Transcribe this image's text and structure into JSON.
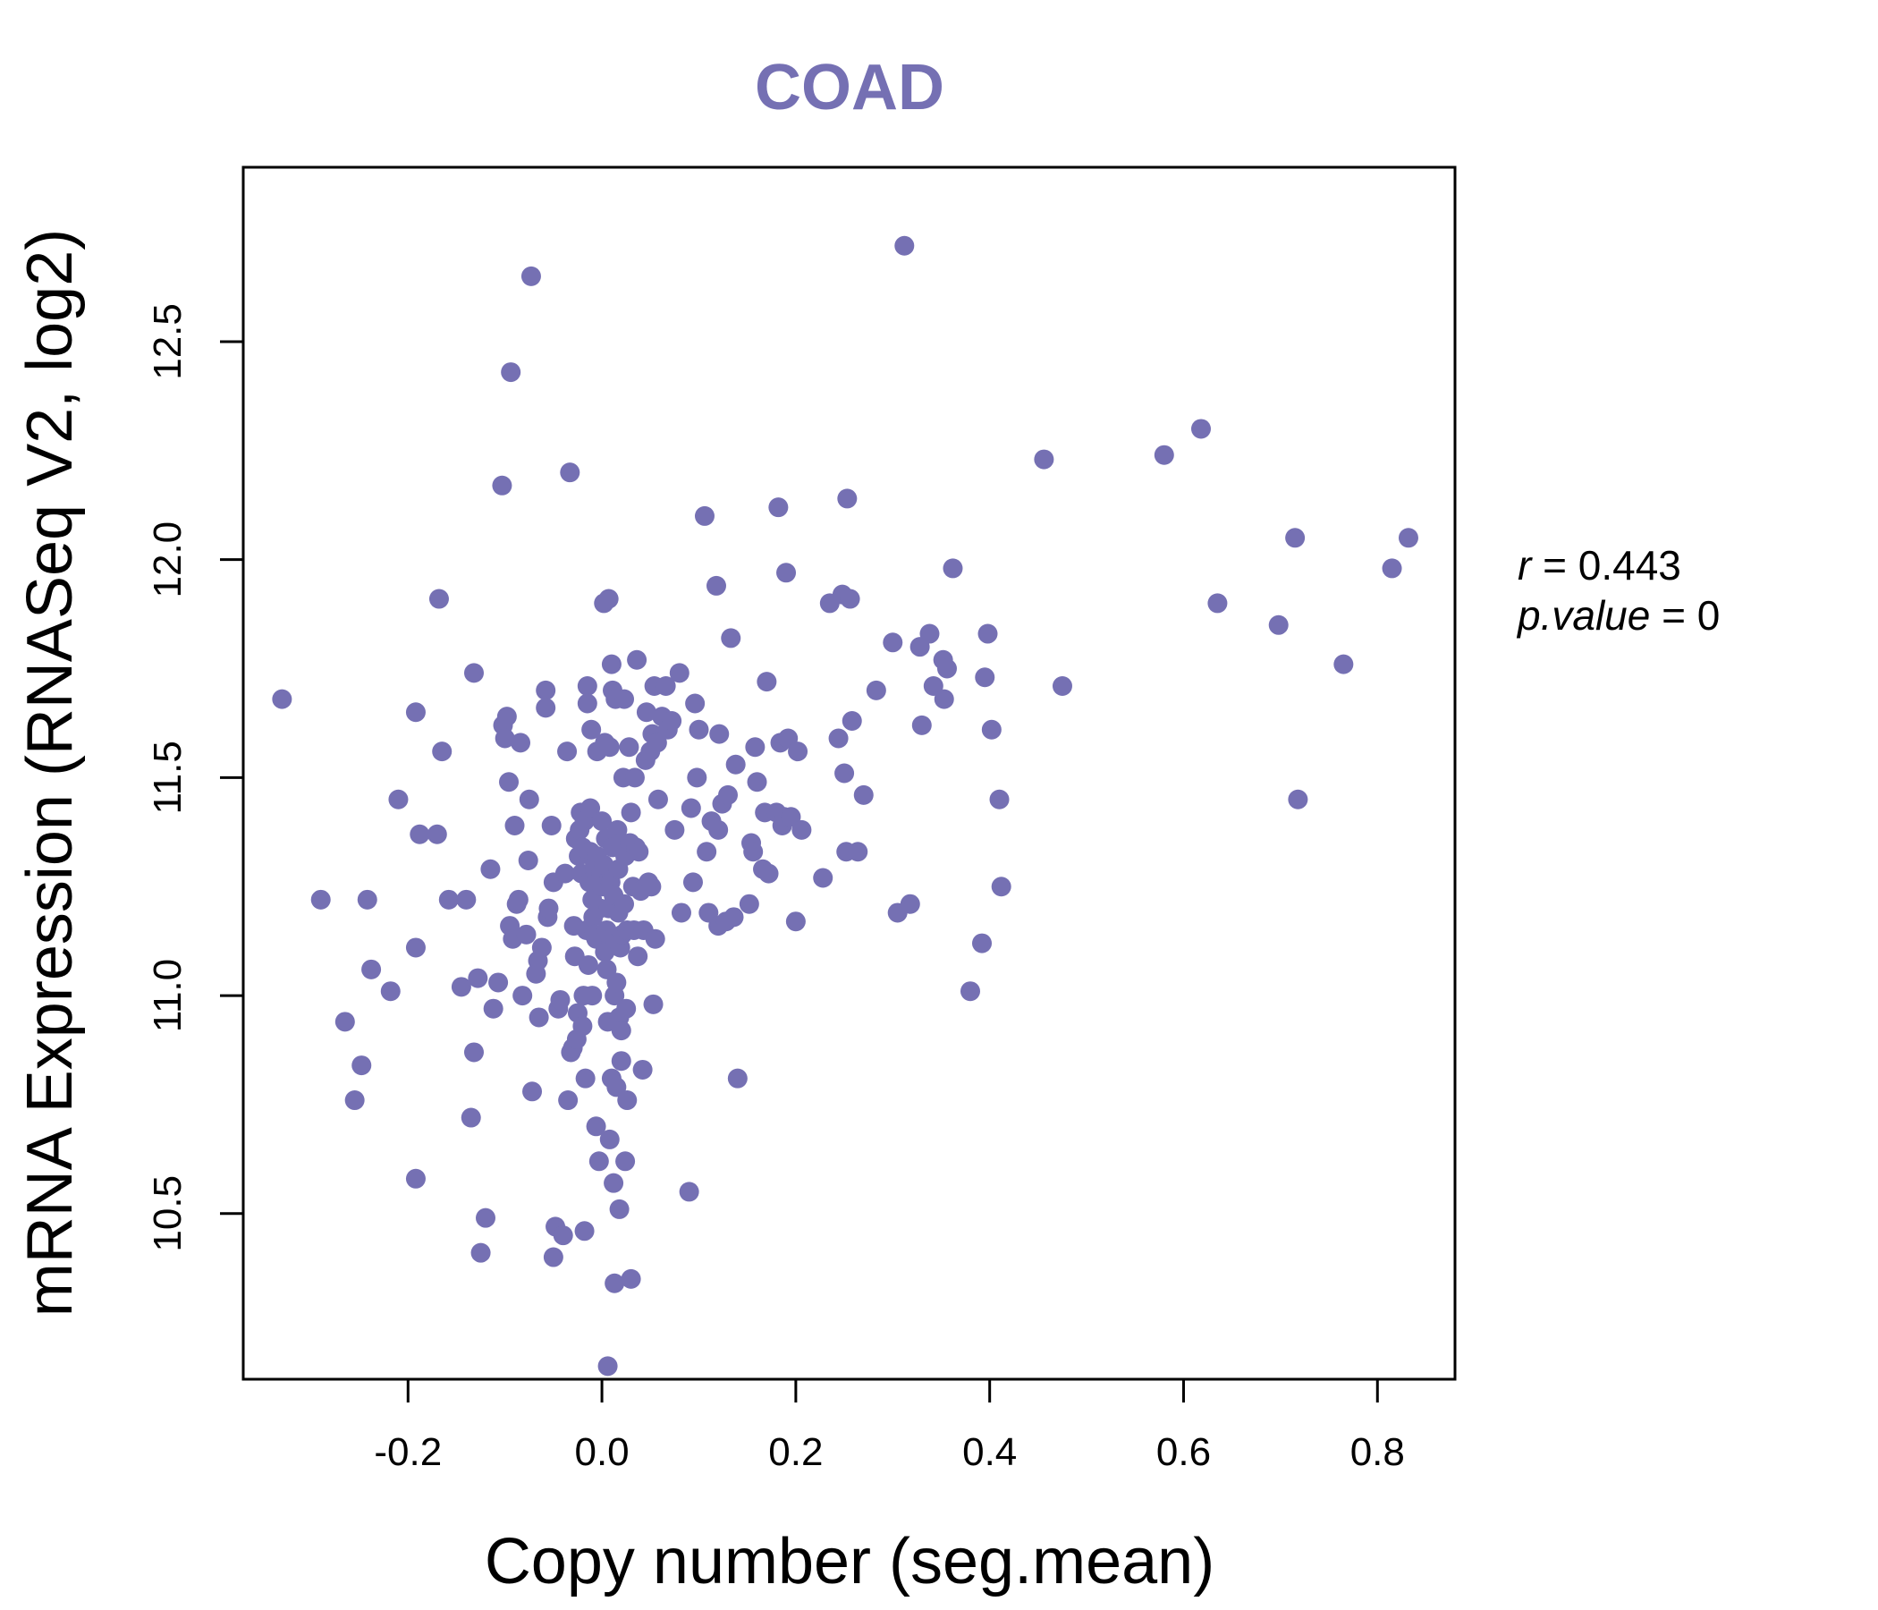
{
  "chart_data": {
    "type": "scatter",
    "title": "COAD",
    "xlabel": "Copy number (seg.mean)",
    "ylabel": "mRNA Expression (RNASeq V2, log2)",
    "xlim": [
      -0.37,
      0.88
    ],
    "ylim": [
      10.12,
      12.9
    ],
    "xticks": [
      -0.2,
      0.0,
      0.2,
      0.4,
      0.6,
      0.8
    ],
    "xtick_labels": [
      "-0.2",
      "0.0",
      "0.2",
      "0.4",
      "0.6",
      "0.8"
    ],
    "yticks": [
      10.5,
      11.0,
      11.5,
      12.0,
      12.5
    ],
    "ytick_labels": [
      "10.5",
      "11.0",
      "11.5",
      "12.0",
      "12.5"
    ],
    "grid": false,
    "point_color": "#7570b3",
    "stats": {
      "r_label": "r",
      "r_value": "0.443",
      "p_label": "p.value",
      "p_value": "0"
    },
    "points": [
      [
        -0.33,
        11.68
      ],
      [
        -0.29,
        11.22
      ],
      [
        -0.265,
        10.94
      ],
      [
        -0.255,
        10.76
      ],
      [
        -0.248,
        10.84
      ],
      [
        -0.242,
        11.22
      ],
      [
        -0.238,
        11.06
      ],
      [
        -0.218,
        11.01
      ],
      [
        -0.21,
        11.45
      ],
      [
        -0.192,
        11.65
      ],
      [
        -0.192,
        11.11
      ],
      [
        -0.192,
        10.58
      ],
      [
        -0.188,
        11.37
      ],
      [
        -0.17,
        11.37
      ],
      [
        -0.168,
        11.91
      ],
      [
        -0.165,
        11.56
      ],
      [
        -0.158,
        11.22
      ],
      [
        -0.145,
        11.02
      ],
      [
        -0.14,
        11.22
      ],
      [
        -0.132,
        11.74
      ],
      [
        -0.135,
        10.72
      ],
      [
        -0.132,
        10.87
      ],
      [
        -0.128,
        11.04
      ],
      [
        -0.125,
        10.41
      ],
      [
        -0.12,
        10.49
      ],
      [
        -0.115,
        11.29
      ],
      [
        -0.112,
        10.97
      ],
      [
        -0.107,
        11.03
      ],
      [
        -0.103,
        12.17
      ],
      [
        -0.102,
        11.62
      ],
      [
        -0.1,
        11.59
      ],
      [
        -0.098,
        11.64
      ],
      [
        -0.096,
        11.49
      ],
      [
        -0.095,
        11.16
      ],
      [
        -0.094,
        12.43
      ],
      [
        -0.092,
        11.13
      ],
      [
        -0.09,
        11.39
      ],
      [
        -0.088,
        11.21
      ],
      [
        -0.086,
        11.22
      ],
      [
        -0.084,
        11.58
      ],
      [
        -0.082,
        11.0
      ],
      [
        -0.078,
        11.14
      ],
      [
        -0.076,
        11.31
      ],
      [
        -0.075,
        11.45
      ],
      [
        -0.073,
        12.65
      ],
      [
        -0.072,
        10.78
      ],
      [
        -0.068,
        11.05
      ],
      [
        -0.066,
        11.08
      ],
      [
        -0.065,
        10.95
      ],
      [
        -0.062,
        11.11
      ],
      [
        -0.058,
        11.7
      ],
      [
        -0.058,
        11.66
      ],
      [
        -0.056,
        11.18
      ],
      [
        -0.055,
        11.2
      ],
      [
        -0.052,
        11.39
      ],
      [
        -0.05,
        10.4
      ],
      [
        -0.05,
        11.26
      ],
      [
        -0.048,
        10.47
      ],
      [
        -0.045,
        10.97
      ],
      [
        -0.043,
        10.99
      ],
      [
        -0.04,
        10.45
      ],
      [
        -0.038,
        11.28
      ],
      [
        -0.036,
        11.56
      ],
      [
        -0.035,
        10.76
      ],
      [
        -0.033,
        12.2
      ],
      [
        -0.032,
        10.87
      ],
      [
        -0.03,
        10.88
      ],
      [
        -0.029,
        11.16
      ],
      [
        -0.028,
        11.09
      ],
      [
        -0.027,
        11.36
      ],
      [
        -0.026,
        10.9
      ],
      [
        -0.025,
        10.96
      ],
      [
        -0.024,
        11.32
      ],
      [
        -0.023,
        11.38
      ],
      [
        -0.022,
        11.42
      ],
      [
        -0.021,
        11.28
      ],
      [
        -0.02,
        11.34
      ],
      [
        -0.02,
        10.93
      ],
      [
        -0.019,
        11.0
      ],
      [
        -0.018,
        11.4
      ],
      [
        -0.018,
        10.46
      ],
      [
        -0.017,
        10.81
      ],
      [
        -0.016,
        11.15
      ],
      [
        -0.015,
        11.71
      ],
      [
        -0.015,
        11.67
      ],
      [
        -0.014,
        11.07
      ],
      [
        -0.013,
        11.26
      ],
      [
        -0.012,
        11.33
      ],
      [
        -0.012,
        11.43
      ],
      [
        -0.011,
        11.61
      ],
      [
        -0.01,
        11.0
      ],
      [
        -0.01,
        11.22
      ],
      [
        -0.009,
        11.18
      ],
      [
        -0.008,
        11.14
      ],
      [
        -0.008,
        11.31
      ],
      [
        -0.007,
        11.29
      ],
      [
        -0.006,
        11.13
      ],
      [
        -0.006,
        10.7
      ],
      [
        -0.005,
        11.56
      ],
      [
        -0.005,
        11.32
      ],
      [
        -0.004,
        11.27
      ],
      [
        -0.003,
        10.62
      ],
      [
        -0.002,
        11.2
      ],
      [
        -0.001,
        11.28
      ],
      [
        0.0,
        11.25
      ],
      [
        0.0,
        11.4
      ],
      [
        0.001,
        11.13
      ],
      [
        0.002,
        11.3
      ],
      [
        0.002,
        11.9
      ],
      [
        0.003,
        11.58
      ],
      [
        0.003,
        11.1
      ],
      [
        0.004,
        11.36
      ],
      [
        0.005,
        11.06
      ],
      [
        0.005,
        11.15
      ],
      [
        0.006,
        10.15
      ],
      [
        0.006,
        10.94
      ],
      [
        0.007,
        11.91
      ],
      [
        0.007,
        11.2
      ],
      [
        0.008,
        11.57
      ],
      [
        0.008,
        10.67
      ],
      [
        0.009,
        11.26
      ],
      [
        0.009,
        11.13
      ],
      [
        0.01,
        11.76
      ],
      [
        0.01,
        10.81
      ],
      [
        0.011,
        11.7
      ],
      [
        0.011,
        11.34
      ],
      [
        0.012,
        10.57
      ],
      [
        0.012,
        11.23
      ],
      [
        0.013,
        11.0
      ],
      [
        0.013,
        10.34
      ],
      [
        0.014,
        11.68
      ],
      [
        0.014,
        11.12
      ],
      [
        0.015,
        11.03
      ],
      [
        0.015,
        10.79
      ],
      [
        0.016,
        11.38
      ],
      [
        0.017,
        11.29
      ],
      [
        0.017,
        11.19
      ],
      [
        0.018,
        10.51
      ],
      [
        0.018,
        10.95
      ],
      [
        0.019,
        11.35
      ],
      [
        0.019,
        11.11
      ],
      [
        0.02,
        10.92
      ],
      [
        0.02,
        10.85
      ],
      [
        0.021,
        11.14
      ],
      [
        0.022,
        11.5
      ],
      [
        0.023,
        11.68
      ],
      [
        0.023,
        11.21
      ],
      [
        0.024,
        10.62
      ],
      [
        0.024,
        11.32
      ],
      [
        0.025,
        10.97
      ],
      [
        0.026,
        11.15
      ],
      [
        0.026,
        10.76
      ],
      [
        0.028,
        11.57
      ],
      [
        0.029,
        11.35
      ],
      [
        0.03,
        11.42
      ],
      [
        0.03,
        10.35
      ],
      [
        0.032,
        11.25
      ],
      [
        0.033,
        11.15
      ],
      [
        0.034,
        11.5
      ],
      [
        0.035,
        11.34
      ],
      [
        0.036,
        11.77
      ],
      [
        0.037,
        11.09
      ],
      [
        0.038,
        11.33
      ],
      [
        0.04,
        11.24
      ],
      [
        0.042,
        10.83
      ],
      [
        0.043,
        11.15
      ],
      [
        0.045,
        11.54
      ],
      [
        0.046,
        11.65
      ],
      [
        0.048,
        11.26
      ],
      [
        0.05,
        11.56
      ],
      [
        0.051,
        11.25
      ],
      [
        0.052,
        11.6
      ],
      [
        0.053,
        10.98
      ],
      [
        0.054,
        11.71
      ],
      [
        0.055,
        11.13
      ],
      [
        0.057,
        11.58
      ],
      [
        0.058,
        11.45
      ],
      [
        0.062,
        11.64
      ],
      [
        0.066,
        11.71
      ],
      [
        0.068,
        11.61
      ],
      [
        0.072,
        11.63
      ],
      [
        0.075,
        11.38
      ],
      [
        0.08,
        11.74
      ],
      [
        0.082,
        11.19
      ],
      [
        0.09,
        10.55
      ],
      [
        0.092,
        11.43
      ],
      [
        0.094,
        11.26
      ],
      [
        0.096,
        11.67
      ],
      [
        0.098,
        11.5
      ],
      [
        0.1,
        11.61
      ],
      [
        0.106,
        12.1
      ],
      [
        0.108,
        11.33
      ],
      [
        0.11,
        11.19
      ],
      [
        0.113,
        11.4
      ],
      [
        0.118,
        11.94
      ],
      [
        0.12,
        11.38
      ],
      [
        0.12,
        11.16
      ],
      [
        0.121,
        11.6
      ],
      [
        0.124,
        11.44
      ],
      [
        0.128,
        11.17
      ],
      [
        0.13,
        11.46
      ],
      [
        0.133,
        11.82
      ],
      [
        0.136,
        11.18
      ],
      [
        0.138,
        11.53
      ],
      [
        0.14,
        10.81
      ],
      [
        0.152,
        11.21
      ],
      [
        0.154,
        11.35
      ],
      [
        0.156,
        11.33
      ],
      [
        0.158,
        11.57
      ],
      [
        0.16,
        11.49
      ],
      [
        0.166,
        11.29
      ],
      [
        0.168,
        11.42
      ],
      [
        0.17,
        11.72
      ],
      [
        0.172,
        11.28
      ],
      [
        0.18,
        11.42
      ],
      [
        0.182,
        12.12
      ],
      [
        0.184,
        11.58
      ],
      [
        0.186,
        11.39
      ],
      [
        0.188,
        11.41
      ],
      [
        0.19,
        11.97
      ],
      [
        0.192,
        11.59
      ],
      [
        0.195,
        11.41
      ],
      [
        0.2,
        11.17
      ],
      [
        0.202,
        11.56
      ],
      [
        0.206,
        11.38
      ],
      [
        0.228,
        11.27
      ],
      [
        0.235,
        11.9
      ],
      [
        0.244,
        11.59
      ],
      [
        0.248,
        11.92
      ],
      [
        0.25,
        11.51
      ],
      [
        0.252,
        11.33
      ],
      [
        0.253,
        12.14
      ],
      [
        0.256,
        11.91
      ],
      [
        0.258,
        11.63
      ],
      [
        0.264,
        11.33
      ],
      [
        0.27,
        11.46
      ],
      [
        0.283,
        11.7
      ],
      [
        0.3,
        11.81
      ],
      [
        0.305,
        11.19
      ],
      [
        0.312,
        12.72
      ],
      [
        0.318,
        11.21
      ],
      [
        0.328,
        11.8
      ],
      [
        0.33,
        11.62
      ],
      [
        0.338,
        11.83
      ],
      [
        0.342,
        11.71
      ],
      [
        0.352,
        11.77
      ],
      [
        0.353,
        11.68
      ],
      [
        0.356,
        11.75
      ],
      [
        0.362,
        11.98
      ],
      [
        0.38,
        11.01
      ],
      [
        0.392,
        11.12
      ],
      [
        0.395,
        11.73
      ],
      [
        0.398,
        11.83
      ],
      [
        0.402,
        11.61
      ],
      [
        0.41,
        11.45
      ],
      [
        0.412,
        11.25
      ],
      [
        0.456,
        12.23
      ],
      [
        0.475,
        11.71
      ],
      [
        0.58,
        12.24
      ],
      [
        0.618,
        12.3
      ],
      [
        0.635,
        11.9
      ],
      [
        0.698,
        11.85
      ],
      [
        0.715,
        12.05
      ],
      [
        0.718,
        11.45
      ],
      [
        0.765,
        11.76
      ],
      [
        0.815,
        11.98
      ],
      [
        0.832,
        12.05
      ]
    ]
  }
}
